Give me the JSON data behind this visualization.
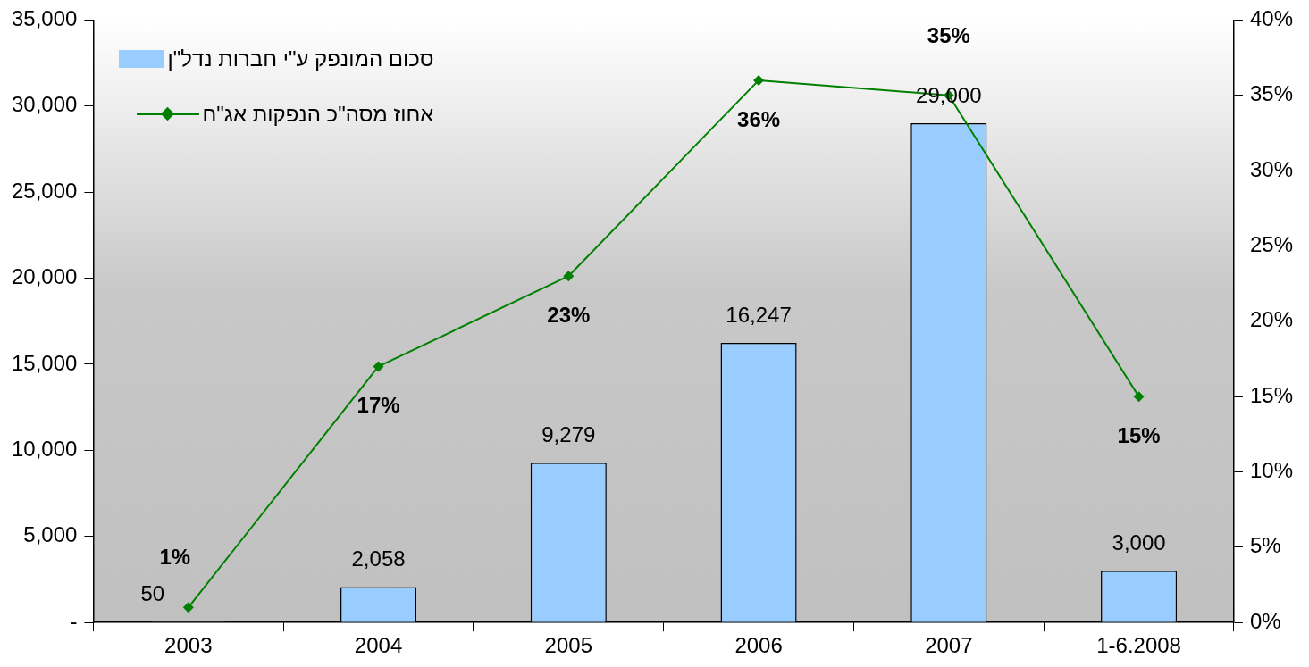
{
  "chart_data": {
    "type": "bar",
    "categories": [
      "2003",
      "2004",
      "2005",
      "2006",
      "2007",
      "1-6.2008"
    ],
    "series": [
      {
        "name": "סכום המונפק ע\"י חברות נדל\"ן",
        "color": "#99ccff",
        "values": [
          50,
          2058,
          9279,
          16247,
          29000,
          3000
        ],
        "value_labels": [
          "50",
          "2,058",
          "9,279",
          "16,247",
          "29,000",
          "3,000"
        ]
      },
      {
        "name": "אחוז מסה\"כ הנפקות אג\"ח",
        "type": "line",
        "axis": "y2",
        "color": "#008000",
        "values": [
          1,
          17,
          23,
          36,
          35,
          15
        ],
        "value_labels": [
          "1%",
          "17%",
          "23%",
          "36%",
          "35%",
          "15%"
        ]
      }
    ],
    "ylim": [
      0,
      35000
    ],
    "yticks": [
      {
        "value": 0,
        "label": "-"
      },
      {
        "value": 5000,
        "label": "5,000"
      },
      {
        "value": 10000,
        "label": "10,000"
      },
      {
        "value": 15000,
        "label": "15,000"
      },
      {
        "value": 20000,
        "label": "20,000"
      },
      {
        "value": 25000,
        "label": "25,000"
      },
      {
        "value": 30000,
        "label": "30,000"
      },
      {
        "value": 35000,
        "label": "35,000"
      }
    ],
    "y2lim": [
      0,
      40
    ],
    "y2ticks": [
      {
        "value": 0,
        "label": "0%"
      },
      {
        "value": 5,
        "label": "5%"
      },
      {
        "value": 10,
        "label": "10%"
      },
      {
        "value": 15,
        "label": "15%"
      },
      {
        "value": 20,
        "label": "20%"
      },
      {
        "value": 25,
        "label": "25%"
      },
      {
        "value": 30,
        "label": "30%"
      },
      {
        "value": 35,
        "label": "35%"
      },
      {
        "value": 40,
        "label": "40%"
      }
    ],
    "grid": false,
    "legend": "top left",
    "marker": "diamond",
    "line_style": "solid"
  }
}
